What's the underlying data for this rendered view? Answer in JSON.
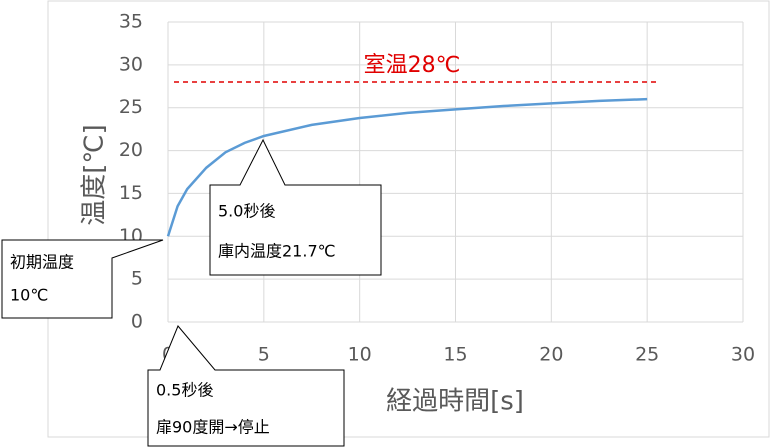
{
  "chart_data": {
    "type": "line",
    "y_label": "温度[℃]",
    "x_label": "経過時間[s]",
    "x": [
      0,
      0.5,
      1,
      2,
      3,
      4,
      5,
      7.5,
      10,
      12.5,
      15,
      17.5,
      20,
      22.5,
      25
    ],
    "series": [
      {
        "color": "#5b9bd5",
        "values": [
          10,
          13.5,
          15.5,
          18,
          19.8,
          20.9,
          21.7,
          23,
          23.8,
          24.4,
          24.8,
          25.2,
          25.5,
          25.8,
          26
        ]
      }
    ],
    "xlim": [
      0,
      30
    ],
    "xticks": [
      0,
      5,
      10,
      15,
      20,
      25,
      30
    ],
    "ylim": [
      0,
      35
    ],
    "yticks": [
      0,
      5,
      10,
      15,
      20,
      25,
      30,
      35
    ],
    "grid": true,
    "reference_line": {
      "value": 28,
      "label": "室温28℃",
      "color": "#e00000"
    },
    "annotations": [
      {
        "lines": [
          "初期温度",
          "10℃"
        ]
      },
      {
        "lines": [
          "5.0秒後",
          "庫内温度21.7℃"
        ]
      },
      {
        "lines": [
          "0.5秒後",
          "扉90度開→停止"
        ]
      }
    ]
  }
}
